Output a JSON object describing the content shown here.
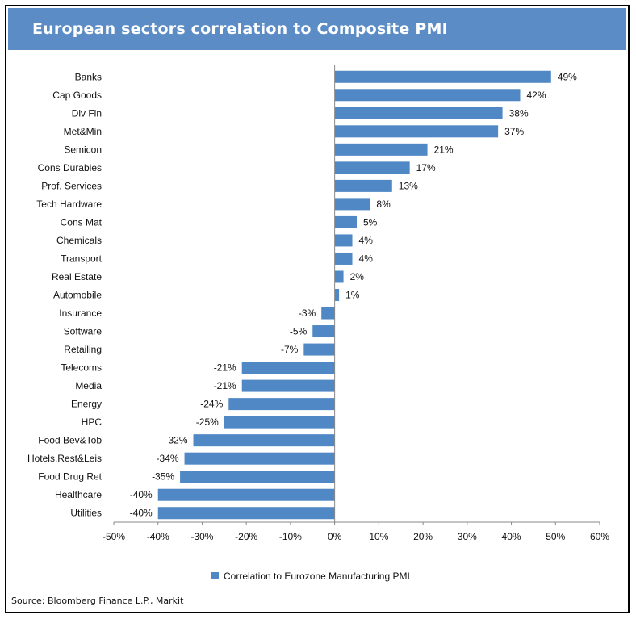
{
  "title": "European sectors correlation to Composite PMI",
  "source": "Source: Bloomberg Finance L.P., Markit",
  "colors": {
    "bar": "#4f88c4",
    "title_bg": "#5b8cc6"
  },
  "chart_data": {
    "type": "bar",
    "orientation": "horizontal",
    "categories": [
      "Banks",
      "Cap Goods",
      "Div Fin",
      "Met&Min",
      "Semicon",
      "Cons Durables",
      "Prof. Services",
      "Tech Hardware",
      "Cons Mat",
      "Chemicals",
      "Transport",
      "Real Estate",
      "Automobile",
      "Insurance",
      "Software",
      "Retailing",
      "Telecoms",
      "Media",
      "Energy",
      "HPC",
      "Food Bev&Tob",
      "Hotels,Rest&Leis",
      "Food Drug Ret",
      "Healthcare",
      "Utilities"
    ],
    "series": [
      {
        "name": "Correlation to Eurozone Manufacturing PMI",
        "values": [
          49,
          42,
          38,
          37,
          21,
          17,
          13,
          8,
          5,
          4,
          4,
          2,
          1,
          -3,
          -5,
          -7,
          -21,
          -21,
          -24,
          -25,
          -32,
          -34,
          -35,
          -40,
          -40
        ],
        "labels": [
          "49%",
          "42%",
          "38%",
          "37%",
          "21%",
          "17%",
          "13%",
          "8%",
          "5%",
          "4%",
          "4%",
          "2%",
          "1%",
          "-3%",
          "-5%",
          "-7%",
          "-21%",
          "-21%",
          "-24%",
          "-25%",
          "-32%",
          "-34%",
          "-35%",
          "-40%",
          "-40%"
        ]
      }
    ],
    "xlim": [
      -50,
      60
    ],
    "xticks": [
      "-50%",
      "-40%",
      "-30%",
      "-20%",
      "-10%",
      "0%",
      "10%",
      "20%",
      "30%",
      "40%",
      "50%",
      "60%"
    ],
    "legend": "bottom",
    "grid": false
  }
}
